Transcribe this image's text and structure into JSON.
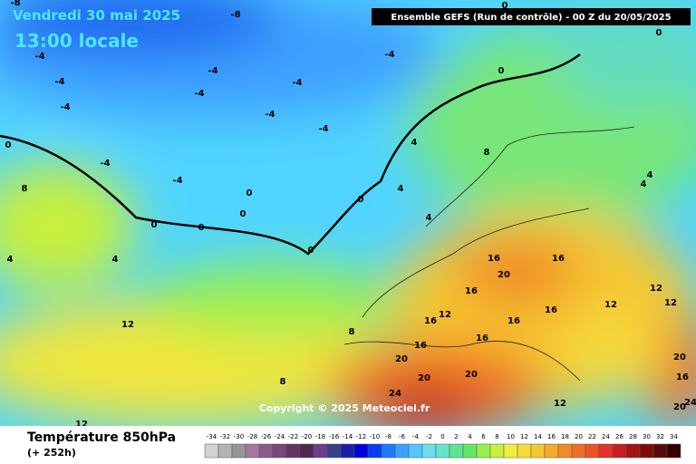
{
  "header": {
    "date": "Vendredi 30 mai 2025",
    "time": "13:00 locale",
    "model": "Ensemble GEFS  (Run de contrôle)  -  00 Z du 20/05/2025"
  },
  "map": {
    "copyright": "Copyright © 2025 Meteociel.fr",
    "contour_labels": [
      -8,
      -8,
      -4,
      -4,
      -4,
      -4,
      -4,
      -4,
      -4,
      -4,
      -4,
      -4,
      -4,
      0,
      0,
      0,
      0,
      0,
      0,
      0,
      0,
      0,
      0,
      4,
      4,
      4,
      4,
      4,
      4,
      4,
      8,
      8,
      8,
      8,
      12,
      12,
      12,
      12,
      12,
      12,
      12,
      16,
      16,
      16,
      16,
      16,
      16,
      16,
      16,
      16,
      20,
      20,
      20,
      20,
      20,
      20,
      24,
      24
    ]
  },
  "footer": {
    "title": "Température 850hPa",
    "lead": "(+ 252h)"
  },
  "scale": {
    "values": [
      -34,
      -32,
      -30,
      -28,
      -26,
      -24,
      -22,
      -20,
      -18,
      -16,
      -14,
      -12,
      -10,
      -8,
      -6,
      -4,
      -2,
      0,
      2,
      4,
      6,
      8,
      10,
      12,
      14,
      16,
      18,
      20,
      22,
      24,
      26,
      28,
      30,
      32,
      34
    ],
    "colors": [
      "#d2d2d2",
      "#b4b4b4",
      "#969696",
      "#a078a0",
      "#8c5a8c",
      "#784678",
      "#643264",
      "#502850",
      "#6e3c8c",
      "#3c3c8c",
      "#1e1eaa",
      "#0000dc",
      "#0a3cf0",
      "#1e78ff",
      "#3ca0ff",
      "#50c8ff",
      "#6edcf0",
      "#64e6c8",
      "#5ae696",
      "#64e664",
      "#96f050",
      "#c8f03c",
      "#f0f03c",
      "#f5dc3c",
      "#f5c832",
      "#f5aa28",
      "#f08c28",
      "#f06e28",
      "#f05028",
      "#e63228",
      "#c81e1e",
      "#a01414",
      "#800a0a",
      "#5a0a0a",
      "#320000"
    ]
  }
}
